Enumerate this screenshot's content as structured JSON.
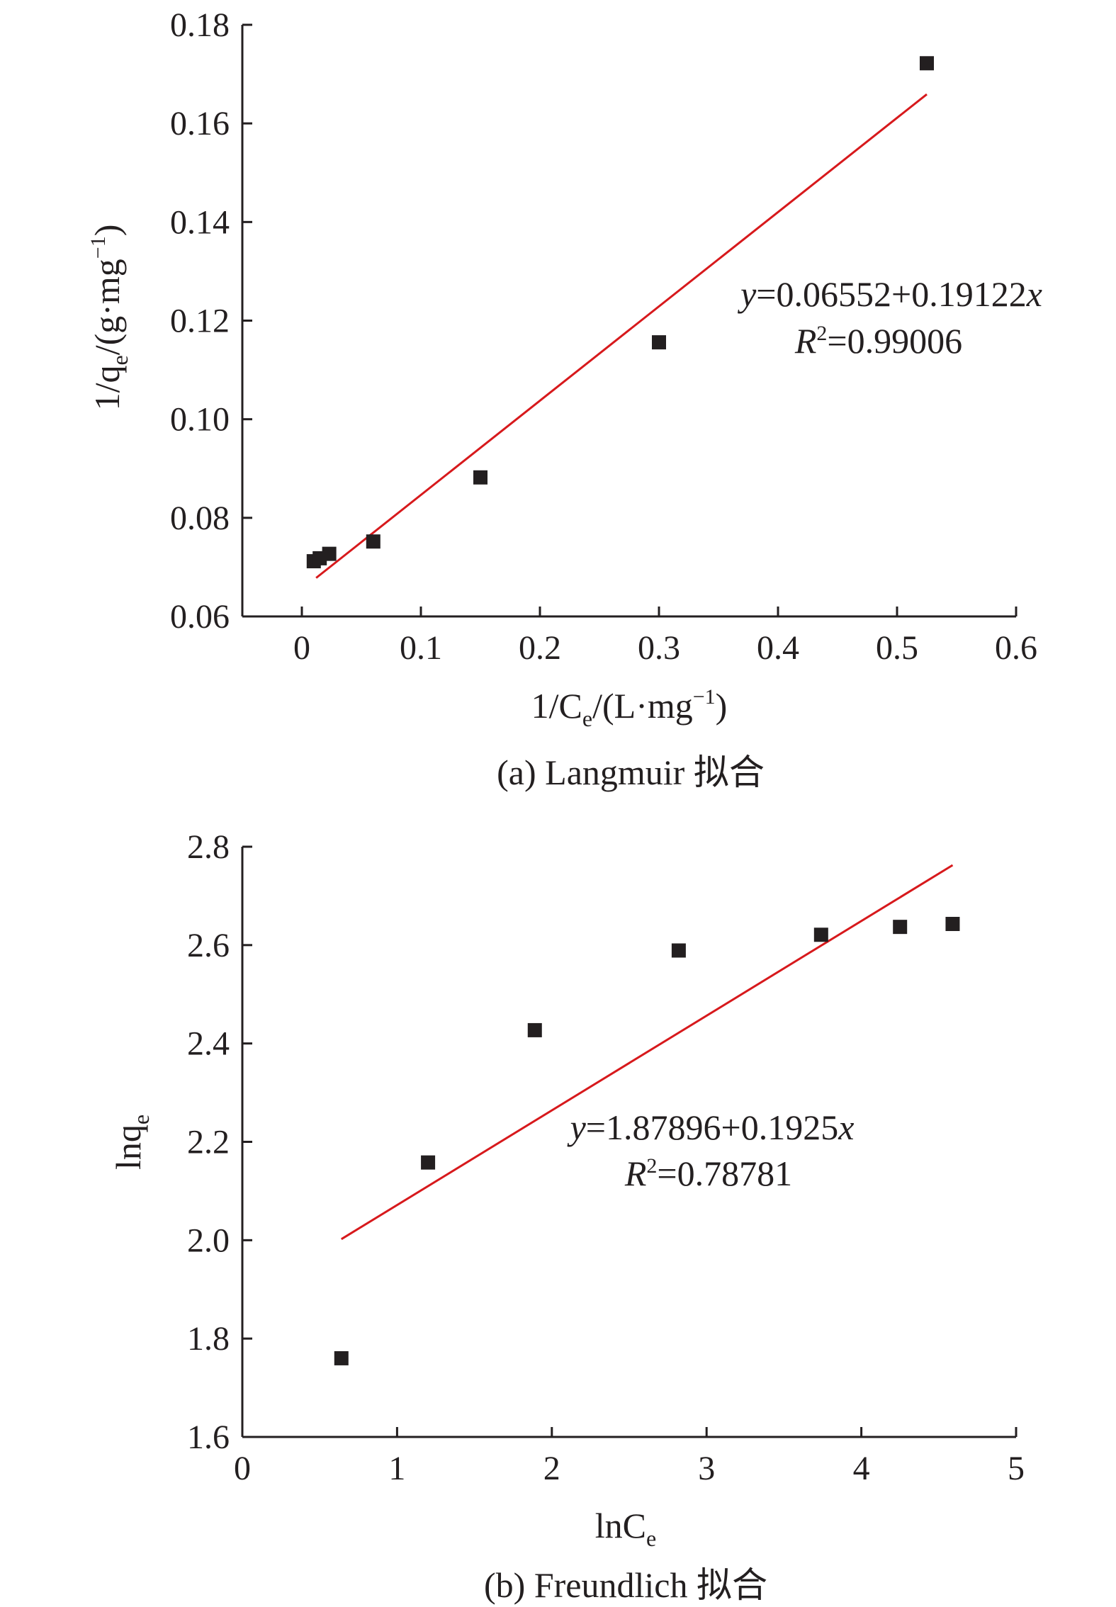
{
  "charts": [
    {
      "caption": "(a) Langmuir 拟合",
      "equation": {
        "y_var": "y",
        "body": "=0.06552+0.19122",
        "x_var": "x",
        "r_var": "R",
        "r_sup": "2",
        "r_value": "=0.99006"
      },
      "x_title": {
        "main": "1/C",
        "sub": "e",
        "tail": "/(L·mg",
        "sup": "−1",
        "close": ")"
      },
      "y_title": {
        "main": "1/q",
        "sub": "e",
        "tail": "/(g·mg",
        "sup": "−1",
        "close": ")"
      }
    },
    {
      "caption": "(b) Freundlich 拟合",
      "equation": {
        "y_var": "y",
        "body": "=1.87896+0.1925",
        "x_var": "x",
        "r_var": "R",
        "r_sup": "2",
        "r_value": "=0.78781"
      },
      "x_title": {
        "main": "lnC",
        "sub": "e"
      },
      "y_title": {
        "main": "lnq",
        "sub": "e"
      }
    }
  ],
  "chart_data": [
    {
      "type": "scatter",
      "title": "(a) Langmuir 拟合",
      "xlabel": "1/Ce/(L·mg−1)",
      "ylabel": "1/qe/(g·mg−1)",
      "xlim": [
        -0.05,
        0.6
      ],
      "ylim": [
        0.06,
        0.18
      ],
      "x_ticks": [
        "0",
        "0.1",
        "0.2",
        "0.3",
        "0.4",
        "0.5",
        "0.6"
      ],
      "y_ticks": [
        "0.06",
        "0.08",
        "0.10",
        "0.12",
        "0.14",
        "0.16",
        "0.18"
      ],
      "grid": false,
      "points": [
        {
          "x": 0.01,
          "y": 0.0712
        },
        {
          "x": 0.015,
          "y": 0.0718
        },
        {
          "x": 0.023,
          "y": 0.0727
        },
        {
          "x": 0.06,
          "y": 0.0752
        },
        {
          "x": 0.15,
          "y": 0.0882
        },
        {
          "x": 0.3,
          "y": 0.1156
        },
        {
          "x": 0.525,
          "y": 0.1722
        }
      ],
      "fit": {
        "intercept": 0.06552,
        "slope": 0.19122,
        "x_start": 0.012,
        "x_end": 0.525,
        "r2": 0.99006
      },
      "colors": {
        "points": "#231f20",
        "fit": "#d7191c",
        "axis": "#231f20"
      }
    },
    {
      "type": "scatter",
      "title": "(b) Freundlich 拟合",
      "xlabel": "lnCe",
      "ylabel": "lnqe",
      "xlim": [
        0,
        5
      ],
      "ylim": [
        1.6,
        2.8
      ],
      "x_ticks": [
        "0",
        "1",
        "2",
        "3",
        "4",
        "5"
      ],
      "y_ticks": [
        "1.6",
        "1.8",
        "2.0",
        "2.2",
        "2.4",
        "2.6",
        "2.8"
      ],
      "grid": false,
      "points": [
        {
          "x": 0.64,
          "y": 1.76
        },
        {
          "x": 1.2,
          "y": 2.158
        },
        {
          "x": 1.89,
          "y": 2.427
        },
        {
          "x": 2.82,
          "y": 2.589
        },
        {
          "x": 3.74,
          "y": 2.621
        },
        {
          "x": 4.25,
          "y": 2.637
        },
        {
          "x": 4.59,
          "y": 2.643
        }
      ],
      "fit": {
        "intercept": 1.87896,
        "slope": 0.1925,
        "x_start": 0.64,
        "x_end": 4.59,
        "r2": 0.78781
      },
      "colors": {
        "points": "#231f20",
        "fit": "#d7191c",
        "axis": "#231f20"
      }
    }
  ]
}
